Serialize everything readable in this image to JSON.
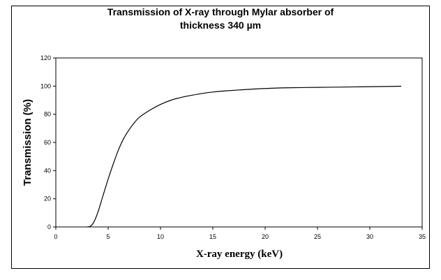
{
  "chart_data": {
    "type": "line",
    "title": [
      "Transmission of X-ray through Mylar absorber of",
      "thickness 340 µm"
    ],
    "xlabel": "X-ray energy (keV)",
    "ylabel": "Transmission (%)",
    "xlim": [
      0,
      35
    ],
    "ylim": [
      0,
      120
    ],
    "xticks": [
      0,
      5,
      10,
      15,
      20,
      25,
      30,
      35
    ],
    "yticks": [
      0,
      20,
      40,
      60,
      80,
      100,
      120
    ],
    "grid": false,
    "legend": "none",
    "line_color": "#000000",
    "series": [
      {
        "x": [
          3,
          3.3,
          3.6,
          4,
          4.5,
          5,
          5.5,
          6,
          6.5,
          7,
          7.5,
          8,
          9,
          10,
          11,
          12,
          13,
          14,
          15,
          16,
          18,
          20,
          22,
          25,
          28,
          30,
          33
        ],
        "y": [
          0,
          0.5,
          3,
          10,
          22,
          34,
          45,
          55,
          63,
          69,
          74,
          78,
          83,
          87,
          90,
          92,
          93.5,
          94.8,
          95.8,
          96.5,
          97.5,
          98.3,
          98.8,
          99.1,
          99.4,
          99.6,
          99.9
        ]
      }
    ]
  }
}
